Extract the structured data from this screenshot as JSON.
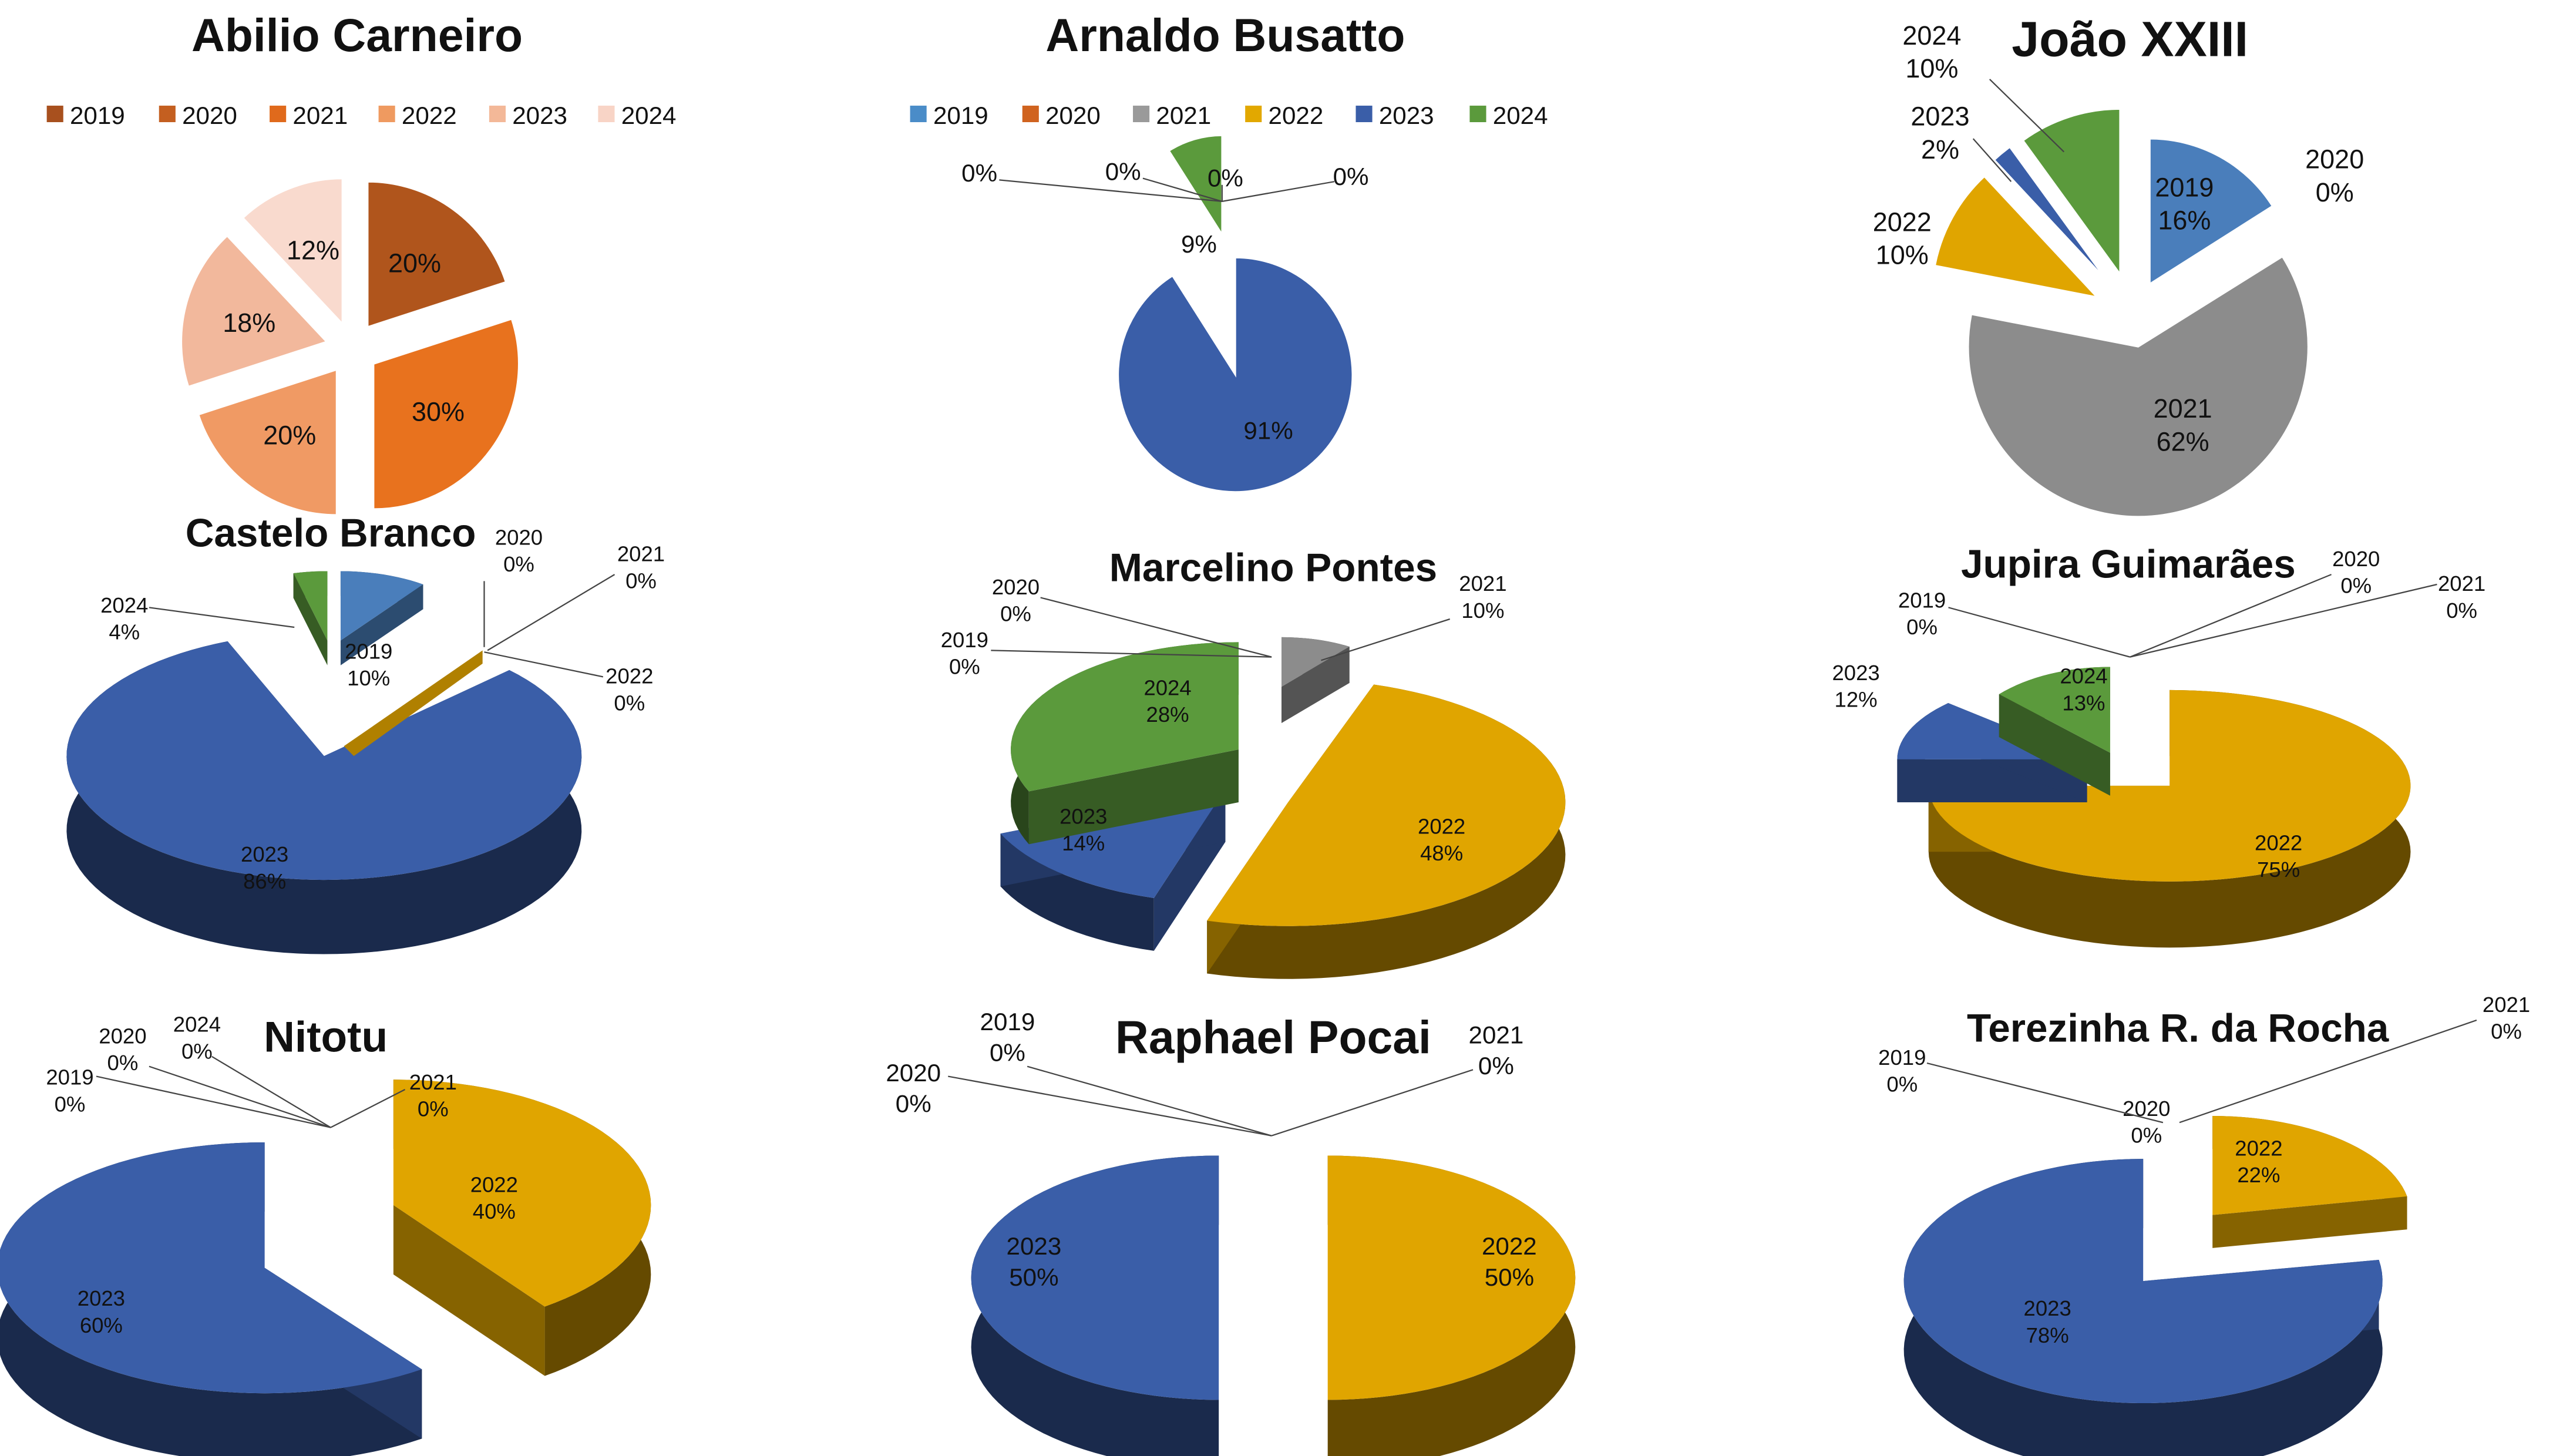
{
  "colors": {
    "2019": "#4a7ebb",
    "2020": "#c0504d",
    "2021": "#8c8c8c",
    "2022": "#e0a500",
    "2023": "#3a5ea8",
    "2024": "#5b9a3c",
    "label_line": "#444444",
    "text": "#111111"
  },
  "chart_data": [
    {
      "type": "pie",
      "title": "Abilio Carneiro",
      "legend_position": "top",
      "legend": [
        "2019",
        "2020",
        "2021",
        "2022",
        "2023",
        "2024"
      ],
      "legend_colors": [
        "#a8501e",
        "#c45f20",
        "#e06a1c",
        "#ef9a60",
        "#f3b898",
        "#f8d4c6"
      ],
      "categories": [
        "2019",
        "2020",
        "2021",
        "2022",
        "2023",
        "2024"
      ],
      "values": [
        20,
        0,
        30,
        20,
        18,
        12
      ],
      "labels": [
        "20%",
        "",
        "30%",
        "20%",
        "18%",
        "12%"
      ],
      "slice_colors": [
        "#b0551c",
        "#c45f20",
        "#e8721e",
        "#f09a64",
        "#f2b89c",
        "#f9dace"
      ]
    },
    {
      "type": "pie",
      "title": "Arnaldo Busatto",
      "legend_position": "top",
      "legend": [
        "2019",
        "2020",
        "2021",
        "2022",
        "2023",
        "2024"
      ],
      "legend_colors": [
        "#4a8cc8",
        "#d0631f",
        "#9a9a9a",
        "#e2a800",
        "#3a5ea8",
        "#5b9a3c"
      ],
      "categories": [
        "2019",
        "2020",
        "2021",
        "2022",
        "2023",
        "2024"
      ],
      "values": [
        0,
        0,
        0,
        0,
        91,
        9
      ],
      "labels": [
        "0%",
        "0%",
        "0%",
        "0%",
        "91%",
        "9%"
      ]
    },
    {
      "type": "pie",
      "title": "João XXIII",
      "categories": [
        "2019",
        "2020",
        "2021",
        "2022",
        "2023",
        "2024"
      ],
      "values": [
        16,
        0,
        62,
        10,
        2,
        10
      ],
      "labels": [
        "2019 16%",
        "2020 0%",
        "2021 62%",
        "2022 10%",
        "2023 2%",
        "2024 10%"
      ]
    },
    {
      "type": "pie",
      "title": "Castelo Branco",
      "categories": [
        "2019",
        "2020",
        "2021",
        "2022",
        "2023",
        "2024"
      ],
      "values": [
        10,
        0,
        0,
        0,
        86,
        4
      ],
      "labels": [
        "2019 10%",
        "2020 0%",
        "2021 0%",
        "2022 0%",
        "2023 86%",
        "2024 4%"
      ]
    },
    {
      "type": "pie",
      "title": "Marcelino Pontes",
      "categories": [
        "2019",
        "2020",
        "2021",
        "2022",
        "2023",
        "2024"
      ],
      "values": [
        0,
        0,
        10,
        48,
        14,
        28
      ],
      "labels": [
        "2019 0%",
        "2020 0%",
        "2021 10%",
        "2022 48%",
        "2023 14%",
        "2024 28%"
      ]
    },
    {
      "type": "pie",
      "title": "Jupira Guimarães",
      "categories": [
        "2019",
        "2020",
        "2021",
        "2022",
        "2023",
        "2024"
      ],
      "values": [
        0,
        0,
        0,
        75,
        12,
        13
      ],
      "labels": [
        "2019 0%",
        "2020 0%",
        "2021 0%",
        "2022 75%",
        "2023 12%",
        "2024 13%"
      ]
    },
    {
      "type": "pie",
      "title": "Nitotu",
      "categories": [
        "2019",
        "2020",
        "2021",
        "2022",
        "2023",
        "2024"
      ],
      "values": [
        0,
        0,
        0,
        40,
        60,
        0
      ],
      "labels": [
        "2019 0%",
        "2020 0%",
        "2021 0%",
        "2022 40%",
        "2023 60%",
        "2024 0%"
      ]
    },
    {
      "type": "pie",
      "title": "Raphael Pocai",
      "categories": [
        "2019",
        "2020",
        "2021",
        "2022",
        "2023"
      ],
      "values": [
        0,
        0,
        0,
        50,
        50
      ],
      "labels": [
        "2019 0%",
        "2020 0%",
        "2021 0%",
        "2022 50%",
        "2023 50%"
      ]
    },
    {
      "type": "pie",
      "title": "Terezinha R. da Rocha",
      "categories": [
        "2019",
        "2020",
        "2021",
        "2022",
        "2023"
      ],
      "values": [
        0,
        0,
        0,
        22,
        78
      ],
      "labels": [
        "2019 0%",
        "2020 0%",
        "2021 0%",
        "2022 22%",
        "2023 78%"
      ]
    }
  ]
}
